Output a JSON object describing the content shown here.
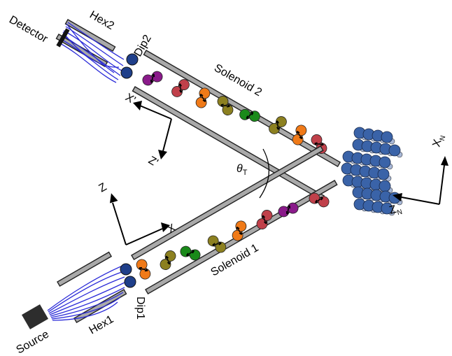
{
  "labels": {
    "detector": "Detector",
    "hex2": "Hex2",
    "dip2": "Dip2",
    "solenoid2": "Solenoid 2",
    "x_prime": "X'",
    "z_prime": "Z'",
    "theta": "θ",
    "theta_sub": "T",
    "x_axis": "X",
    "z_axis": "Z",
    "x_n": "X",
    "x_n_sub": "N",
    "z_n": "Z",
    "z_n_sub": "N",
    "solenoid1": "Solenoid 1",
    "source": "Source",
    "hex1": "Hex1",
    "dip1": "Dip1"
  },
  "colors": {
    "purple": "#8a1a8a",
    "red": "#c0404a",
    "orange": "#f07a18",
    "olive": "#8c8020",
    "green": "#1a8a1a",
    "navy": "#1f3f8a",
    "surface": "#3a63a8",
    "surface_small": "#a8b8d8",
    "coil": "#2a2ad8",
    "tube": "#a9a9a9"
  },
  "molecules_upper": [
    "purple",
    "red",
    "orange",
    "olive",
    "green",
    "olive",
    "orange",
    "red"
  ],
  "molecules_lower": [
    "orange",
    "olive",
    "green",
    "olive",
    "orange",
    "red",
    "purple",
    "red"
  ]
}
